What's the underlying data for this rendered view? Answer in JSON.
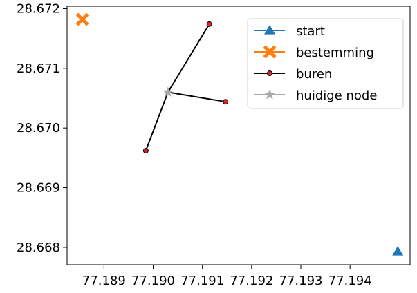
{
  "chart_data": {
    "type": "line",
    "title": "",
    "xlabel": "",
    "ylabel": "",
    "xlim": [
      77.18825,
      77.19522
    ],
    "ylim": [
      28.66771,
      28.67204
    ],
    "x_ticks": [
      {
        "value": 77.189,
        "label": "77.189"
      },
      {
        "value": 77.19,
        "label": "77.190"
      },
      {
        "value": 77.191,
        "label": "77.191"
      },
      {
        "value": 77.192,
        "label": "77.192"
      },
      {
        "value": 77.193,
        "label": "77.193"
      },
      {
        "value": 77.194,
        "label": "77.194"
      }
    ],
    "y_ticks": [
      {
        "value": 28.668,
        "label": "28.668"
      },
      {
        "value": 28.669,
        "label": "28.669"
      },
      {
        "value": 28.67,
        "label": "28.670"
      },
      {
        "value": 28.671,
        "label": "28.671"
      },
      {
        "value": 28.672,
        "label": "28.672"
      }
    ],
    "grid": false,
    "legend_position": "top-right",
    "series": [
      {
        "name": "start",
        "marker": "triangle",
        "color": "#1f77b4",
        "points": [
          [
            77.19497,
            28.66793
          ]
        ]
      },
      {
        "name": "bestemming",
        "marker": "x",
        "color": "#ff7f0e",
        "points": [
          [
            77.18856,
            28.67182
          ]
        ]
      },
      {
        "name": "buren",
        "marker": "circle",
        "color": "#000000",
        "marker_fill": "#d62728",
        "segments": [
          [
            [
              77.1903,
              28.6706
            ],
            [
              77.19114,
              28.67174
            ]
          ],
          [
            [
              77.1903,
              28.6706
            ],
            [
              77.18985,
              28.66962
            ]
          ],
          [
            [
              77.1903,
              28.6706
            ],
            [
              77.19147,
              28.67044
            ]
          ]
        ]
      },
      {
        "name": "huidige node",
        "marker": "star",
        "color": "#a9a9a9",
        "points": [
          [
            77.1903,
            28.6706
          ]
        ]
      }
    ]
  }
}
